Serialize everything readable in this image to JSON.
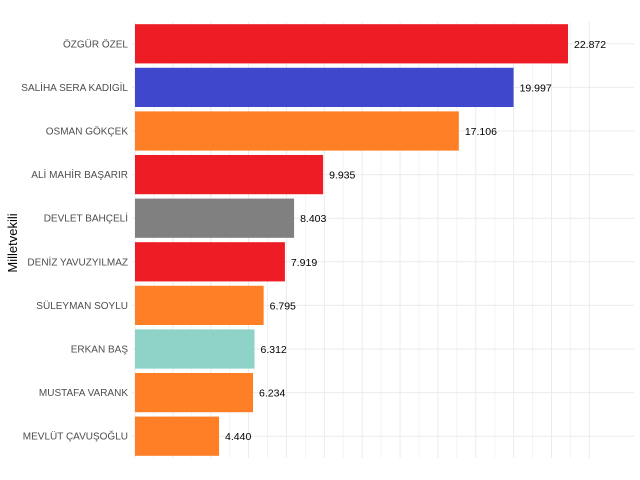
{
  "chart_data": {
    "type": "bar",
    "orientation": "horizontal",
    "title": "",
    "xlabel": "",
    "ylabel": "Milletvekili",
    "xlim": [
      0,
      24000
    ],
    "grid": true,
    "legend": "none",
    "categories": [
      "ÖZGÜR ÖZEL",
      "SALİHA SERA KADIGİL",
      "OSMAN GÖKÇEK",
      "ALİ MAHİR BAŞARIR",
      "DEVLET BAHÇELİ",
      "DENİZ YAVUZYILMAZ",
      "SÜLEYMAN SOYLU",
      "ERKAN BAŞ",
      "MUSTAFA VARANK",
      "MEVLÜT ÇAVUŞOĞLU"
    ],
    "values": [
      22872,
      19997,
      17106,
      9935,
      8403,
      7919,
      6795,
      6312,
      6234,
      4440
    ],
    "value_labels": [
      "22.872",
      "19.997",
      "17.106",
      "9.935",
      "8.403",
      "7.919",
      "6.795",
      "6.312",
      "6.234",
      "4.440"
    ],
    "colors": [
      "#ee1c25",
      "#3f47cc",
      "#ff7f27",
      "#ee1c25",
      "#808080",
      "#ee1c25",
      "#ff7f27",
      "#8fd3c8",
      "#ff7f27",
      "#ff7f27"
    ]
  }
}
